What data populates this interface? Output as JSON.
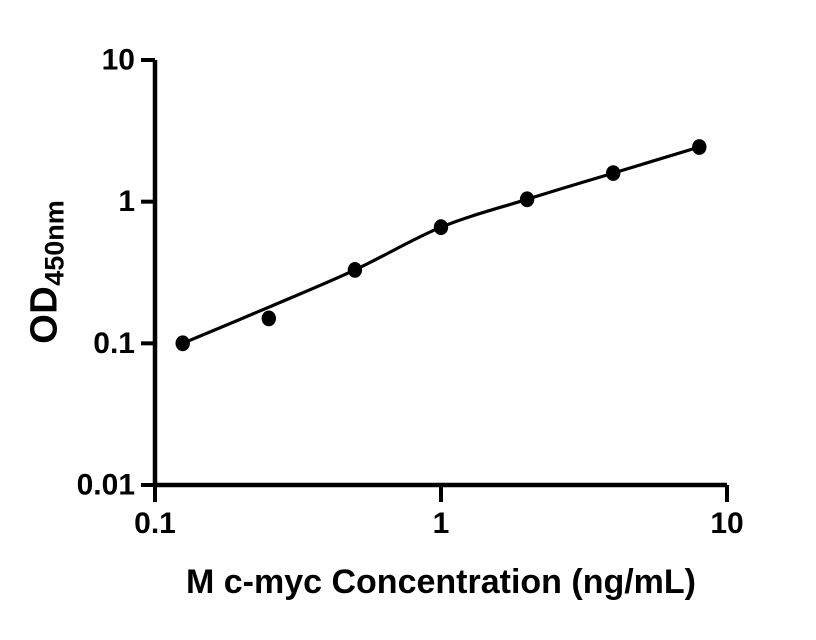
{
  "chart_data": {
    "type": "scatter",
    "title": "",
    "description": "ELISA standard curve, log-log axes, black line fit with filled circle markers",
    "x_axis": {
      "label": "M c-myc Concentration (ng/mL)",
      "scale": "log",
      "min": 0.1,
      "max": 10,
      "ticks": [
        {
          "value": 0.1,
          "label": "0.1"
        },
        {
          "value": 1,
          "label": "1"
        },
        {
          "value": 10,
          "label": "10"
        }
      ]
    },
    "y_axis": {
      "label_main": "OD",
      "label_sub": "450nm",
      "scale": "log",
      "min": 0.01,
      "max": 10,
      "ticks": [
        {
          "value": 10,
          "label": "10"
        },
        {
          "value": 1,
          "label": "1"
        },
        {
          "value": 0.1,
          "label": "0.1"
        },
        {
          "value": 0.01,
          "label": "0.01"
        }
      ]
    },
    "grid": false,
    "legend": "none",
    "series": [
      {
        "name": "standard-curve",
        "marker": "filled-circle",
        "color": "#000000",
        "points": [
          {
            "x": 0.125,
            "y": 0.1
          },
          {
            "x": 0.25,
            "y": 0.15
          },
          {
            "x": 0.5,
            "y": 0.33
          },
          {
            "x": 1,
            "y": 0.66
          },
          {
            "x": 2,
            "y": 1.04
          },
          {
            "x": 4,
            "y": 1.59
          },
          {
            "x": 8,
            "y": 2.43
          }
        ],
        "fit_curve": [
          {
            "x": 0.125,
            "y": 0.1
          },
          {
            "x": 0.25,
            "y": 0.18
          },
          {
            "x": 0.5,
            "y": 0.33
          },
          {
            "x": 1,
            "y": 0.66
          },
          {
            "x": 2,
            "y": 1.04
          },
          {
            "x": 4,
            "y": 1.59
          },
          {
            "x": 8,
            "y": 2.43
          }
        ]
      }
    ],
    "colors": {
      "foreground": "#000000",
      "background": "#ffffff"
    }
  }
}
